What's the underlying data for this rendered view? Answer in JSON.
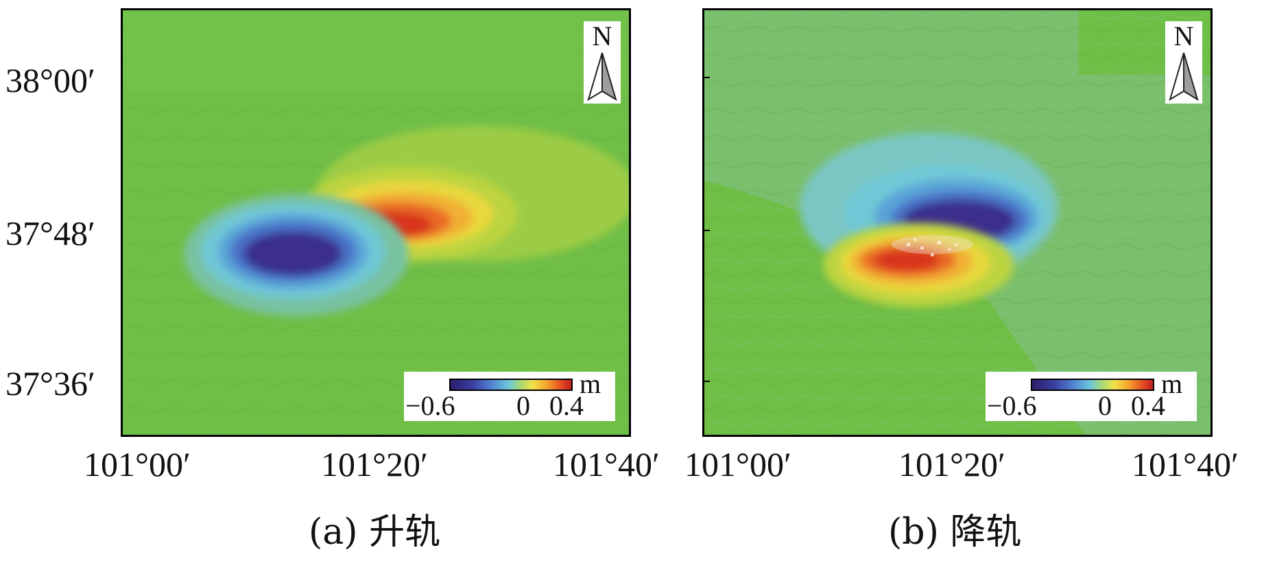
{
  "panels": [
    {
      "id": "a",
      "caption": "(a) 升轨",
      "north_label": "N",
      "legend": {
        "unit": "m",
        "min": "−0.6",
        "zero": "0",
        "max": "0.4",
        "range": [
          -0.6,
          0.4
        ]
      }
    },
    {
      "id": "b",
      "caption": "(b) 降轨",
      "north_label": "N",
      "legend": {
        "unit": "m",
        "min": "−0.6",
        "zero": "0",
        "max": "0.4",
        "range": [
          -0.6,
          0.4
        ]
      }
    }
  ],
  "y_axis": {
    "labels": [
      "38°00′",
      "37°48′",
      "37°36′"
    ]
  },
  "x_axis": {
    "panel_a": [
      "101°00′",
      "101°20′",
      "101°40′"
    ],
    "panel_b": [
      "101°00′",
      "101°20′",
      "101°40′"
    ]
  },
  "colors": {
    "background_green": "#6fbe46",
    "negative_deep": "#3b2f8c",
    "positive_deep": "#d8341f",
    "frame": "#000000"
  }
}
